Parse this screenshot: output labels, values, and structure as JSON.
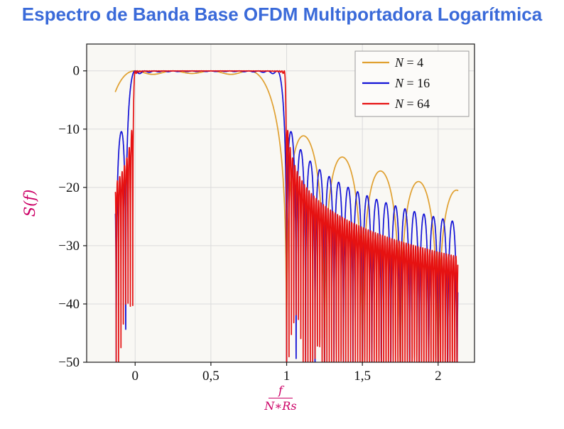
{
  "title": "Espectro de Banda Base OFDM Multiportadora Logarítmica",
  "colors": {
    "title": "#3A6AD9",
    "axis_label": "#CC0066",
    "grid": "#DBDBDB",
    "frame": "#1A1A1A",
    "tick_text": "#111111",
    "plot_bg": "#F9F8F4",
    "legend_bg": "#FCFBF9",
    "legend_border": "#9A9A9A"
  },
  "chart_data": {
    "type": "line",
    "title": "Espectro de Banda Base OFDM Multiportadora Logarítmica",
    "ylabel": "S(f)",
    "xlabel_numerator": "f",
    "xlabel_denominator": "N∗Rs",
    "grid": true,
    "legend_position": "top-right",
    "x_axis": {
      "min": -0.32,
      "max": 2.24,
      "tick_values": [
        0,
        0.5,
        1,
        1.5,
        2
      ],
      "tick_labels": [
        "0",
        "0,5",
        "1",
        "1,5",
        "2"
      ]
    },
    "y_axis": {
      "min": -50,
      "max": 4.6,
      "tick_values": [
        0,
        -10,
        -20,
        -30,
        -40,
        -50
      ],
      "tick_labels": [
        "0",
        "−10",
        "−20",
        "−30",
        "−40",
        "−50"
      ]
    },
    "model": "S_N(x) = 10·log10( sum_{k=0..N−1} sinc²(N·x − k) ) dB, with x = f/(N·Rs); flat ≈ 0 dB over 0 ≤ x ≤ 1, sinc sidelobes outside the band, clipped at −50 dB",
    "domain": [
      -0.13,
      2.13
    ],
    "samples": 3600,
    "clip_min_dB": -50,
    "series": [
      {
        "name": "N = 4",
        "N": 4,
        "color": "#E0A030"
      },
      {
        "name": "N = 16",
        "N": 16,
        "color": "#1212D6"
      },
      {
        "name": "N = 64",
        "N": 64,
        "color": "#E61212"
      }
    ]
  }
}
